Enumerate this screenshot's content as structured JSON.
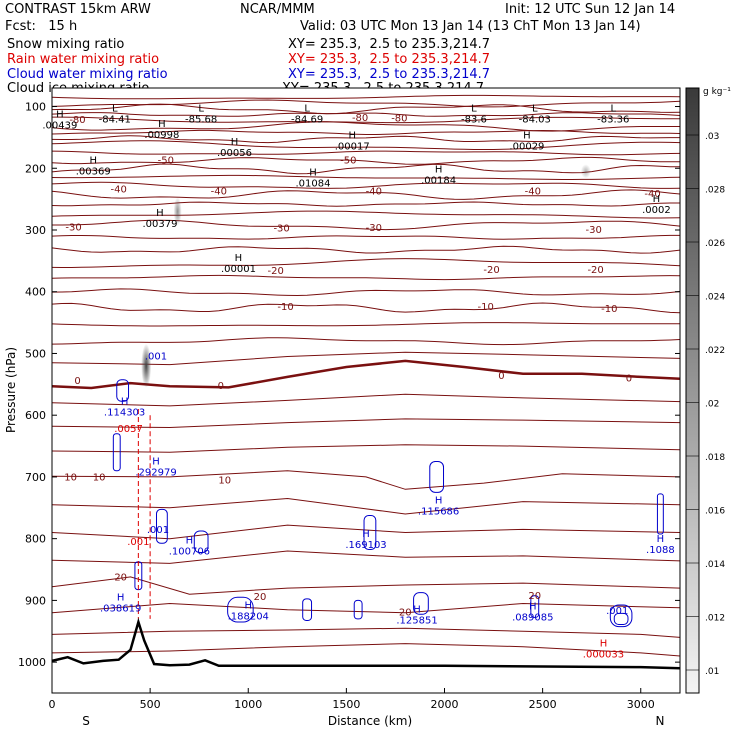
{
  "header": {
    "model": "CONTRAST 15km ARW",
    "org": "NCAR/MMM",
    "init": "Init: 12 UTC Sun 12 Jan 14",
    "fcst": "Fcst:   15 h",
    "valid": "Valid: 03 UTC Mon 13 Jan 14 (13 ChT Mon 13 Jan 14)"
  },
  "legend": [
    {
      "name": "Snow mixing ratio",
      "xy": "XY= 235.3,  2.5 to 235.3,214.7",
      "color": "#000000"
    },
    {
      "name": "Rain water mixing ratio",
      "xy": "XY= 235.3,  2.5 to 235.3,214.7",
      "color": "#dd0000"
    },
    {
      "name": "Cloud water mixing ratio",
      "xy": "XY= 235.3,  2.5 to 235.3,214.7",
      "color": "#0000cc"
    },
    {
      "name": "Cloud ice mixing ratio",
      "xy": "XY= 235.3,  2.5 to 235.3,214.7",
      "color": "#000000"
    }
  ],
  "chart_data": {
    "type": "cross-section",
    "xlabel": "Distance (km)",
    "ylabel": "Pressure (hPa)",
    "xlim": [
      0,
      3200
    ],
    "ylim": [
      1050,
      70
    ],
    "xticks": [
      0,
      500,
      1000,
      1500,
      2000,
      2500,
      3000
    ],
    "yticks": [
      100,
      200,
      300,
      400,
      500,
      600,
      700,
      800,
      900,
      1000
    ],
    "end_labels": {
      "left": "S",
      "right": "N"
    },
    "colorbar": {
      "unit": "g kg⁻¹",
      "ticks": [
        "0.01",
        "0.012",
        "0.014",
        "0.016",
        "0.018",
        ".02",
        ".022",
        ".024",
        ".026",
        ".028",
        ".03"
      ],
      "tick_labels": [
        ".01",
        ".012",
        ".014",
        ".016",
        ".018",
        ".02",
        ".022",
        ".024",
        ".026",
        ".028",
        ".03"
      ]
    },
    "temperature_labels": [
      {
        "x": 130,
        "p": 120,
        "text": "-80"
      },
      {
        "x": 1570,
        "p": 117,
        "text": "-80"
      },
      {
        "x": 1770,
        "p": 118,
        "text": "-80"
      },
      {
        "x": 580,
        "p": 186,
        "text": "-50"
      },
      {
        "x": 1510,
        "p": 186,
        "text": "-50"
      },
      {
        "x": 340,
        "p": 233,
        "text": "-40"
      },
      {
        "x": 850,
        "p": 236,
        "text": "-40"
      },
      {
        "x": 1640,
        "p": 236,
        "text": "-40"
      },
      {
        "x": 2450,
        "p": 236,
        "text": "-40"
      },
      {
        "x": 3060,
        "p": 240,
        "text": "-40"
      },
      {
        "x": 110,
        "p": 294,
        "text": "-30"
      },
      {
        "x": 1170,
        "p": 296,
        "text": "-30"
      },
      {
        "x": 1640,
        "p": 295,
        "text": "-30"
      },
      {
        "x": 2760,
        "p": 298,
        "text": "-30"
      },
      {
        "x": 1140,
        "p": 365,
        "text": "-20"
      },
      {
        "x": 2240,
        "p": 363,
        "text": "-20"
      },
      {
        "x": 2770,
        "p": 363,
        "text": "-20"
      },
      {
        "x": 1190,
        "p": 423,
        "text": "-10"
      },
      {
        "x": 2210,
        "p": 423,
        "text": "-10"
      },
      {
        "x": 2840,
        "p": 426,
        "text": "-10"
      },
      {
        "x": 130,
        "p": 543,
        "text": "0"
      },
      {
        "x": 860,
        "p": 551,
        "text": "0"
      },
      {
        "x": 2290,
        "p": 535,
        "text": "0"
      },
      {
        "x": 2940,
        "p": 539,
        "text": "0"
      },
      {
        "x": 95,
        "p": 699,
        "text": "10"
      },
      {
        "x": 240,
        "p": 699,
        "text": "10"
      },
      {
        "x": 880,
        "p": 704,
        "text": "10"
      },
      {
        "x": 350,
        "p": 861,
        "text": "20"
      },
      {
        "x": 1060,
        "p": 893,
        "text": "20"
      },
      {
        "x": 1800,
        "p": 918,
        "text": "20"
      },
      {
        "x": 2460,
        "p": 891,
        "text": "20"
      }
    ],
    "snow_max_labels": [
      {
        "x": 320,
        "p": 108,
        "text": "L",
        "sub": "-84.41"
      },
      {
        "x": 760,
        "p": 108,
        "text": "L",
        "sub": "-85.68"
      },
      {
        "x": 1300,
        "p": 108,
        "text": "L",
        "sub": "-84.69"
      },
      {
        "x": 2150,
        "p": 108,
        "text": "L",
        "sub": "-83.6"
      },
      {
        "x": 2460,
        "p": 108,
        "text": "L",
        "sub": "-84.03"
      },
      {
        "x": 2860,
        "p": 108,
        "text": "L",
        "sub": "-83.36"
      },
      {
        "x": 40,
        "p": 118,
        "text": "H",
        "sub": ".00439"
      },
      {
        "x": 560,
        "p": 133,
        "text": "H",
        "sub": ".00998"
      },
      {
        "x": 930,
        "p": 162,
        "text": "H",
        "sub": ".00056"
      },
      {
        "x": 1530,
        "p": 152,
        "text": "H",
        "sub": ".00017"
      },
      {
        "x": 2420,
        "p": 152,
        "text": "H",
        "sub": ".00029"
      },
      {
        "x": 210,
        "p": 192,
        "text": "H",
        "sub": ".00369"
      },
      {
        "x": 1330,
        "p": 212,
        "text": "H",
        "sub": ".01084"
      },
      {
        "x": 1970,
        "p": 207,
        "text": "H",
        "sub": ".00184"
      },
      {
        "x": 3080,
        "p": 255,
        "text": "H",
        "sub": ".0002"
      },
      {
        "x": 550,
        "p": 277,
        "text": "H",
        "sub": ".00379"
      },
      {
        "x": 950,
        "p": 350,
        "text": "H",
        "sub": ".00001"
      }
    ],
    "cloud_water_max_labels": [
      {
        "x": 370,
        "p": 583,
        "text": "H",
        "sub": ".114303"
      },
      {
        "x": 530,
        "p": 510,
        "text": "",
        "sub": ".001"
      },
      {
        "x": 530,
        "p": 680,
        "text": "H",
        "sub": ".292979"
      },
      {
        "x": 700,
        "p": 808,
        "text": "H",
        "sub": ".100706"
      },
      {
        "x": 540,
        "p": 791,
        "text": "",
        "sub": ".001"
      },
      {
        "x": 1600,
        "p": 797,
        "text": "H",
        "sub": ".169103"
      },
      {
        "x": 1970,
        "p": 743,
        "text": "H",
        "sub": ".115686"
      },
      {
        "x": 3100,
        "p": 805,
        "text": "H",
        "sub": ".1088"
      },
      {
        "x": 350,
        "p": 900,
        "text": "H",
        "sub": ".038619"
      },
      {
        "x": 1000,
        "p": 913,
        "text": "H",
        "sub": ".188204"
      },
      {
        "x": 1860,
        "p": 920,
        "text": "H",
        "sub": ".125851"
      },
      {
        "x": 2450,
        "p": 915,
        "text": "H",
        "sub": ".089085"
      },
      {
        "x": 2880,
        "p": 922,
        "text": "",
        "sub": ".001"
      }
    ],
    "rain_max_labels": [
      {
        "x": 390,
        "p": 627,
        "text": "",
        "sub": ".0057"
      },
      {
        "x": 440,
        "p": 810,
        "text": "",
        "sub": ".001"
      },
      {
        "x": 2810,
        "p": 975,
        "text": "H",
        "sub": ".000033"
      }
    ],
    "terrain": [
      [
        0,
        998
      ],
      [
        80,
        992
      ],
      [
        160,
        1002
      ],
      [
        260,
        998
      ],
      [
        340,
        996
      ],
      [
        400,
        980
      ],
      [
        440,
        935
      ],
      [
        470,
        965
      ],
      [
        520,
        1003
      ],
      [
        600,
        1005
      ],
      [
        700,
        1004
      ],
      [
        780,
        997
      ],
      [
        850,
        1006
      ],
      [
        1000,
        1006
      ],
      [
        1500,
        1006
      ],
      [
        2000,
        1006
      ],
      [
        2500,
        1007
      ],
      [
        3000,
        1008
      ],
      [
        3200,
        1010
      ]
    ]
  }
}
